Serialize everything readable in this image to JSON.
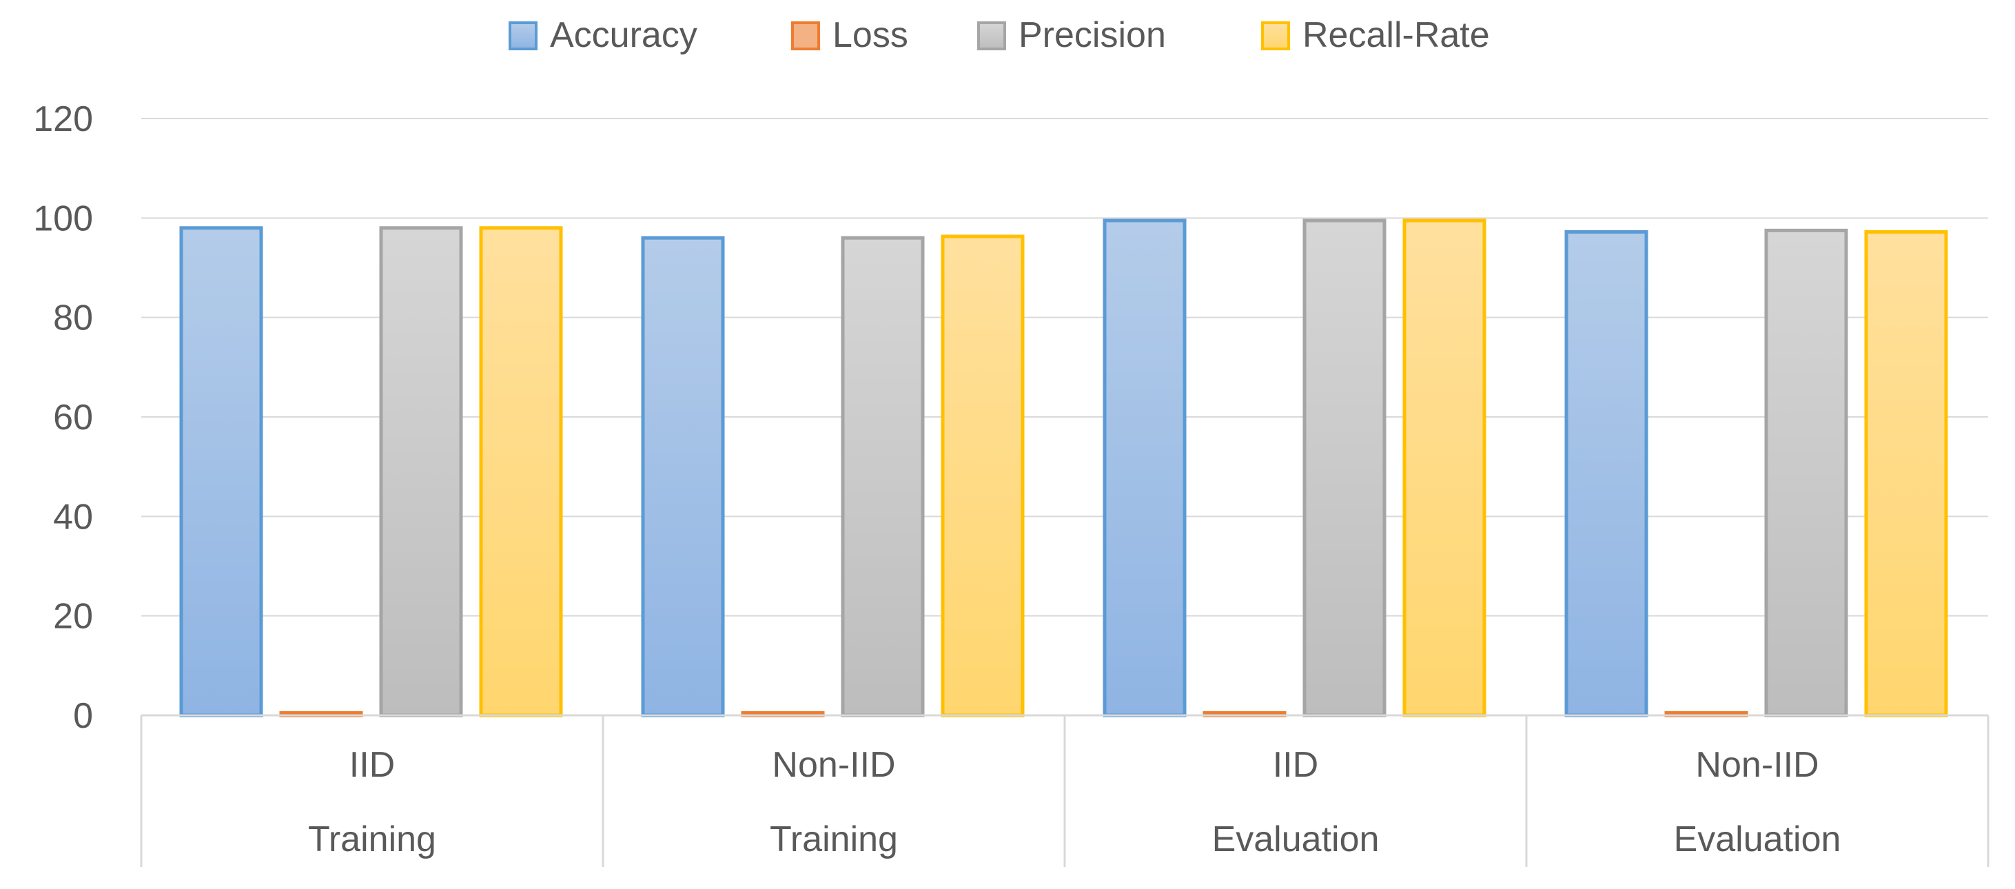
{
  "chart_data": {
    "type": "bar",
    "categories": [
      {
        "sub": "IID",
        "group": "Training"
      },
      {
        "sub": "Non-IID",
        "group": "Training"
      },
      {
        "sub": "IID",
        "group": "Evaluation"
      },
      {
        "sub": "Non-IID",
        "group": "Evaluation"
      }
    ],
    "series": [
      {
        "name": "Accuracy",
        "values": [
          98,
          96,
          99.5,
          97.2
        ],
        "fill_top": "#b4cce9",
        "fill_bottom": "#8fb4e3",
        "stroke": "#5b9bd5"
      },
      {
        "name": "Loss",
        "values": [
          0.5,
          0.5,
          0.5,
          0.5
        ],
        "fill_top": "#f4b183",
        "fill_bottom": "#f4b183",
        "stroke": "#ed7d31"
      },
      {
        "name": "Precision",
        "values": [
          98,
          96,
          99.5,
          97.5
        ],
        "fill_top": "#d6d6d6",
        "fill_bottom": "#bdbdbd",
        "stroke": "#a5a5a5"
      },
      {
        "name": "Recall-Rate",
        "values": [
          98,
          96.3,
          99.5,
          97.2
        ],
        "fill_top": "#ffe09e",
        "fill_bottom": "#ffd66e",
        "stroke": "#ffc000"
      }
    ],
    "y_ticks": [
      "0",
      "20",
      "40",
      "60",
      "80",
      "100",
      "120"
    ],
    "ylim": [
      0,
      120
    ],
    "grid": true,
    "legend_position": "top-center",
    "title": "",
    "xlabel": "",
    "ylabel": ""
  }
}
